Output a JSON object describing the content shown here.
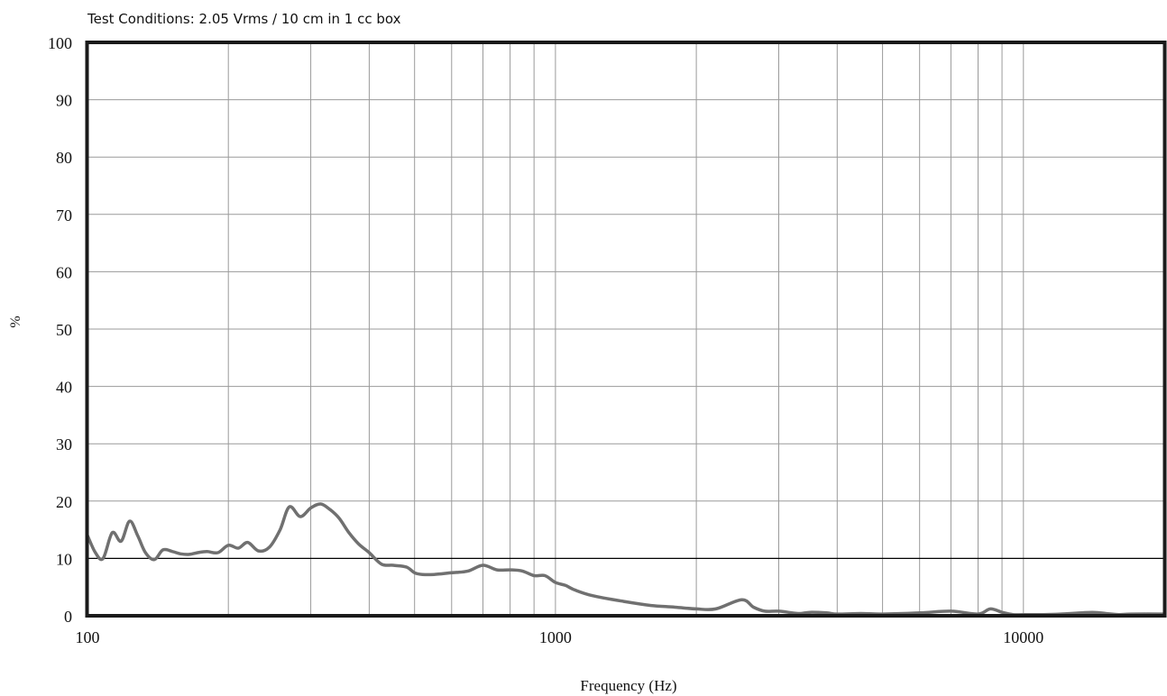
{
  "header": {
    "test_conditions": "Test Conditions: 2.05 Vrms / 10 cm in 1 cc box"
  },
  "chart_data": {
    "type": "line",
    "title": "",
    "xlabel": "Frequency (Hz)",
    "ylabel": "%",
    "x_scale": "log",
    "xlim": [
      100,
      20000
    ],
    "ylim": [
      0,
      100
    ],
    "x_tick_labels": [
      "100",
      "1000",
      "10000"
    ],
    "x_tick_values": [
      100,
      1000,
      10000
    ],
    "y_ticks": [
      0,
      10,
      20,
      30,
      40,
      50,
      60,
      70,
      80,
      90,
      100
    ],
    "grid": true,
    "colors": {
      "line": "#707070",
      "grid": "#9a9a9a",
      "frame": "#1a1a1a",
      "highlight_gridline": "#000000"
    },
    "highlight_y": 10,
    "series": [
      {
        "x": [
          100,
          104,
          108,
          113,
          118,
          123,
          128,
          133,
          139,
          145,
          152,
          158,
          165,
          172,
          180,
          190,
          200,
          210,
          220,
          232,
          245,
          258,
          270,
          285,
          300,
          315,
          330,
          345,
          362,
          380,
          400,
          425,
          450,
          480,
          500,
          520,
          550,
          600,
          650,
          700,
          750,
          800,
          850,
          900,
          950,
          1000,
          1050,
          1100,
          1200,
          1400,
          1600,
          1800,
          2000,
          2200,
          2500,
          2650,
          2800,
          3000,
          3300,
          3500,
          3800,
          4000,
          4500,
          5000,
          6000,
          7000,
          8000,
          8500,
          9000,
          9500,
          10000,
          11000,
          12000,
          14000,
          15000,
          16000,
          17000,
          20000
        ],
        "y": [
          14,
          11,
          10,
          14.5,
          13,
          16.5,
          14,
          11,
          9.8,
          11.5,
          11.2,
          10.8,
          10.7,
          11,
          11.2,
          11,
          12.3,
          11.8,
          12.8,
          11.3,
          12,
          15,
          19,
          17.3,
          18.8,
          19.5,
          18.5,
          17,
          14.5,
          12.5,
          11,
          9,
          8.8,
          8.5,
          7.5,
          7.2,
          7.2,
          7.5,
          7.8,
          8.8,
          8,
          8,
          7.8,
          7,
          7,
          5.8,
          5.3,
          4.5,
          3.5,
          2.5,
          1.8,
          1.5,
          1.2,
          1.2,
          2.8,
          1.5,
          0.8,
          0.8,
          0.4,
          0.6,
          0.5,
          0.3,
          0.4,
          0.3,
          0.5,
          0.8,
          0.3,
          1.2,
          0.6,
          0.2,
          0.2,
          0.2,
          0.3,
          0.6,
          0.4,
          0.2,
          0.3,
          0.3
        ]
      }
    ]
  }
}
